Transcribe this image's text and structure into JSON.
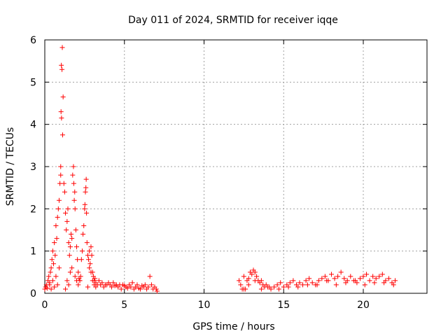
{
  "chart_data": {
    "type": "scatter",
    "title": "Day 011 of 2024, SRMTID for receiver iqqe",
    "xlabel": "GPS time / hours",
    "ylabel": "SRMTID / TECUs",
    "xlim": [
      0,
      24
    ],
    "ylim": [
      0,
      6
    ],
    "xticks": [
      0,
      5,
      10,
      15,
      20
    ],
    "yticks": [
      0,
      1,
      2,
      3,
      4,
      5,
      6
    ],
    "grid": true,
    "marker": "+",
    "colors": {
      "series": "#ff0000",
      "grid": "#a0a0a0",
      "axes": "#000000"
    },
    "series": [
      {
        "name": "SRMTID",
        "x": [
          0.0,
          0.05,
          0.1,
          0.15,
          0.2,
          0.25,
          0.3,
          0.35,
          0.4,
          0.45,
          0.5,
          0.55,
          0.6,
          0.65,
          0.7,
          0.75,
          0.8,
          0.85,
          0.9,
          0.95,
          1.0,
          1.0,
          1.02,
          1.04,
          1.05,
          1.08,
          1.1,
          1.12,
          1.15,
          1.2,
          1.25,
          1.3,
          1.35,
          1.4,
          1.45,
          1.5,
          1.55,
          1.6,
          1.65,
          1.7,
          1.75,
          1.8,
          1.82,
          1.85,
          1.88,
          1.9,
          1.95,
          2.0,
          2.05,
          2.1,
          2.15,
          2.2,
          2.25,
          2.3,
          2.35,
          2.4,
          2.45,
          2.5,
          2.52,
          2.55,
          2.58,
          2.6,
          2.62,
          2.65,
          2.7,
          2.75,
          2.8,
          2.85,
          2.9,
          2.95,
          3.0,
          3.05,
          3.1,
          3.15,
          3.2,
          3.3,
          3.4,
          3.5,
          3.6,
          3.7,
          3.8,
          3.9,
          4.0,
          4.1,
          4.2,
          4.3,
          4.4,
          4.5,
          4.6,
          4.7,
          4.8,
          4.9,
          5.0,
          5.1,
          5.2,
          5.3,
          5.4,
          5.5,
          5.6,
          5.7,
          5.8,
          5.9,
          6.0,
          6.1,
          6.2,
          6.3,
          6.4,
          6.5,
          6.6,
          6.7,
          6.8,
          6.9,
          7.0,
          7.05,
          0.3,
          0.4,
          0.5,
          0.6,
          0.7,
          0.8,
          0.9,
          1.3,
          1.4,
          1.5,
          1.6,
          1.7,
          1.9,
          2.0,
          2.1,
          2.2,
          2.7,
          2.8,
          2.9,
          3.0,
          3.1,
          3.2,
          12.2,
          12.3,
          12.4,
          12.5,
          12.6,
          12.7,
          12.8,
          12.9,
          13.0,
          13.1,
          13.2,
          13.3,
          13.4,
          13.5,
          13.6,
          13.7,
          13.8,
          13.9,
          14.0,
          14.2,
          14.4,
          14.6,
          14.8,
          15.0,
          15.2,
          15.4,
          15.6,
          15.8,
          16.0,
          16.2,
          16.4,
          16.6,
          16.8,
          17.0,
          17.2,
          17.4,
          17.6,
          17.8,
          18.0,
          18.2,
          18.4,
          18.6,
          18.8,
          19.0,
          19.2,
          19.4,
          19.6,
          19.8,
          20.0,
          20.2,
          20.4,
          20.6,
          20.8,
          21.0,
          21.2,
          21.4,
          21.6,
          21.8,
          22.0,
          12.5,
          12.8,
          13.2,
          13.6,
          14.1,
          14.7,
          15.3,
          15.9,
          16.5,
          17.1,
          17.7,
          18.3,
          18.9,
          19.5,
          20.1,
          20.7,
          21.3,
          21.9
        ],
        "y": [
          0.1,
          0.15,
          0.2,
          0.12,
          0.3,
          0.4,
          0.25,
          0.5,
          0.6,
          0.8,
          1.0,
          0.7,
          1.2,
          0.9,
          1.6,
          1.3,
          1.8,
          2.0,
          2.2,
          2.6,
          2.8,
          3.0,
          4.3,
          5.4,
          4.15,
          5.3,
          5.82,
          3.75,
          4.65,
          2.6,
          2.4,
          1.9,
          1.5,
          1.7,
          2.0,
          1.2,
          0.9,
          1.1,
          1.4,
          1.3,
          2.8,
          3.0,
          2.6,
          2.2,
          2.4,
          2.0,
          1.5,
          1.1,
          0.8,
          0.5,
          0.35,
          0.3,
          0.4,
          0.8,
          1.0,
          1.4,
          1.6,
          2.0,
          2.1,
          2.4,
          2.5,
          2.7,
          1.9,
          1.2,
          0.9,
          0.8,
          1.0,
          0.7,
          1.1,
          0.9,
          0.5,
          0.4,
          0.3,
          0.35,
          0.25,
          0.2,
          0.3,
          0.2,
          0.25,
          0.15,
          0.2,
          0.2,
          0.25,
          0.2,
          0.15,
          0.25,
          0.18,
          0.2,
          0.15,
          0.2,
          0.1,
          0.2,
          0.18,
          0.15,
          0.12,
          0.2,
          0.15,
          0.25,
          0.1,
          0.15,
          0.2,
          0.12,
          0.1,
          0.18,
          0.15,
          0.2,
          0.1,
          0.15,
          0.4,
          0.2,
          0.1,
          0.15,
          0.1,
          0.05,
          0.2,
          0.1,
          0.3,
          0.15,
          0.4,
          0.2,
          0.6,
          0.1,
          0.3,
          0.2,
          0.5,
          0.6,
          0.4,
          0.3,
          0.2,
          0.3,
          0.15,
          0.6,
          0.5,
          0.3,
          0.2,
          0.15,
          0.3,
          0.2,
          0.1,
          0.4,
          0.1,
          0.3,
          0.35,
          0.5,
          0.45,
          0.55,
          0.5,
          0.4,
          0.3,
          0.25,
          0.3,
          0.2,
          0.15,
          0.2,
          0.15,
          0.1,
          0.15,
          0.2,
          0.25,
          0.15,
          0.2,
          0.25,
          0.3,
          0.2,
          0.25,
          0.2,
          0.3,
          0.35,
          0.25,
          0.2,
          0.3,
          0.35,
          0.4,
          0.3,
          0.45,
          0.35,
          0.4,
          0.5,
          0.35,
          0.3,
          0.4,
          0.3,
          0.25,
          0.35,
          0.4,
          0.45,
          0.3,
          0.4,
          0.35,
          0.4,
          0.45,
          0.3,
          0.35,
          0.25,
          0.3,
          0.1,
          0.2,
          0.3,
          0.1,
          0.15,
          0.1,
          0.15,
          0.15,
          0.2,
          0.2,
          0.3,
          0.2,
          0.25,
          0.3,
          0.2,
          0.25,
          0.25,
          0.2
        ]
      }
    ]
  }
}
